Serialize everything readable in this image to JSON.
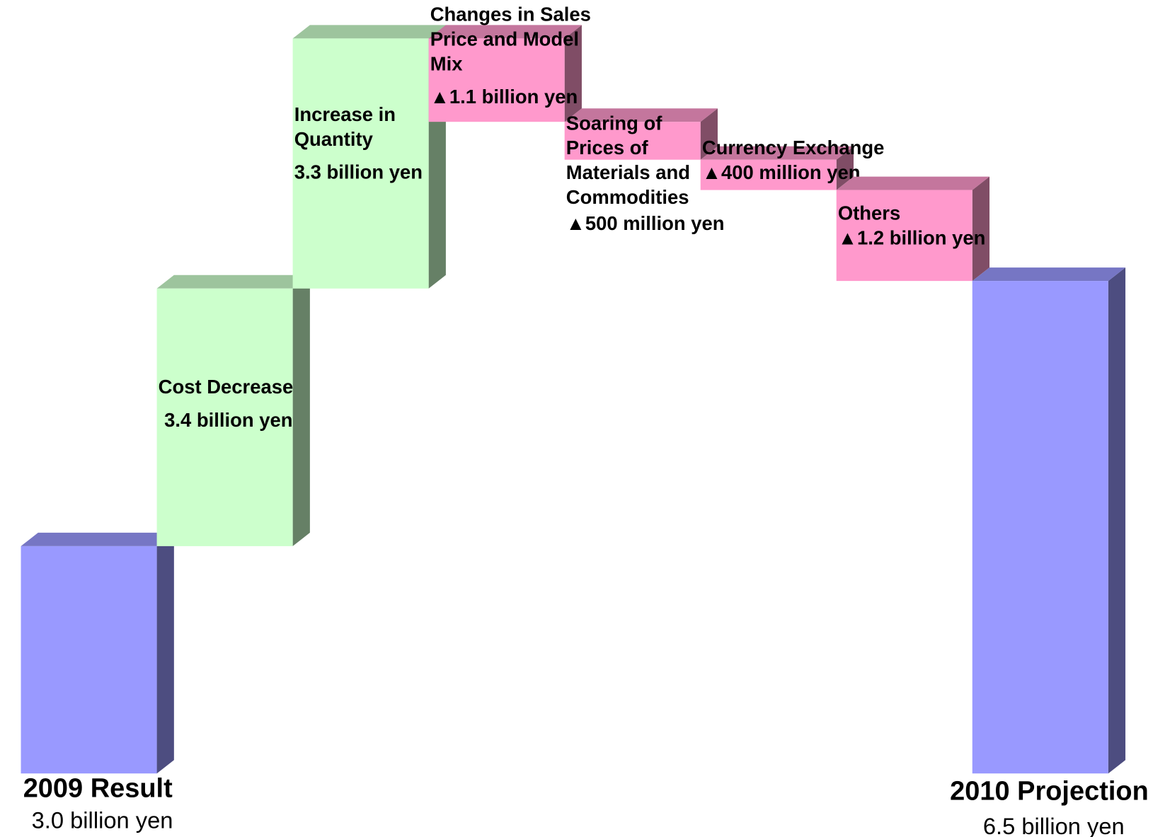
{
  "chart_data": {
    "type": "waterfall",
    "categories": [
      "2009 Result",
      "Cost Decrease",
      "Increase in Quantity",
      "Changes in Sales Price and Model Mix",
      "Soaring of Prices of Materials and Commodities",
      "Currency Exchange",
      "Others",
      "2010 Projection"
    ],
    "values": [
      3.0,
      3.4,
      3.3,
      -1.1,
      -0.5,
      -0.4,
      -1.2,
      6.5
    ],
    "value_labels": [
      "3.0 billion yen",
      "3.4 billion yen",
      "3.3 billion yen",
      "▲1.1 billion yen",
      "▲500 million yen",
      "▲400 million yen",
      "▲1.2 billion yen",
      "6.5 billion yen"
    ],
    "total_color": "#9999ff",
    "increase_color": "#ccffcc",
    "decrease_color": "#ff99cc"
  }
}
